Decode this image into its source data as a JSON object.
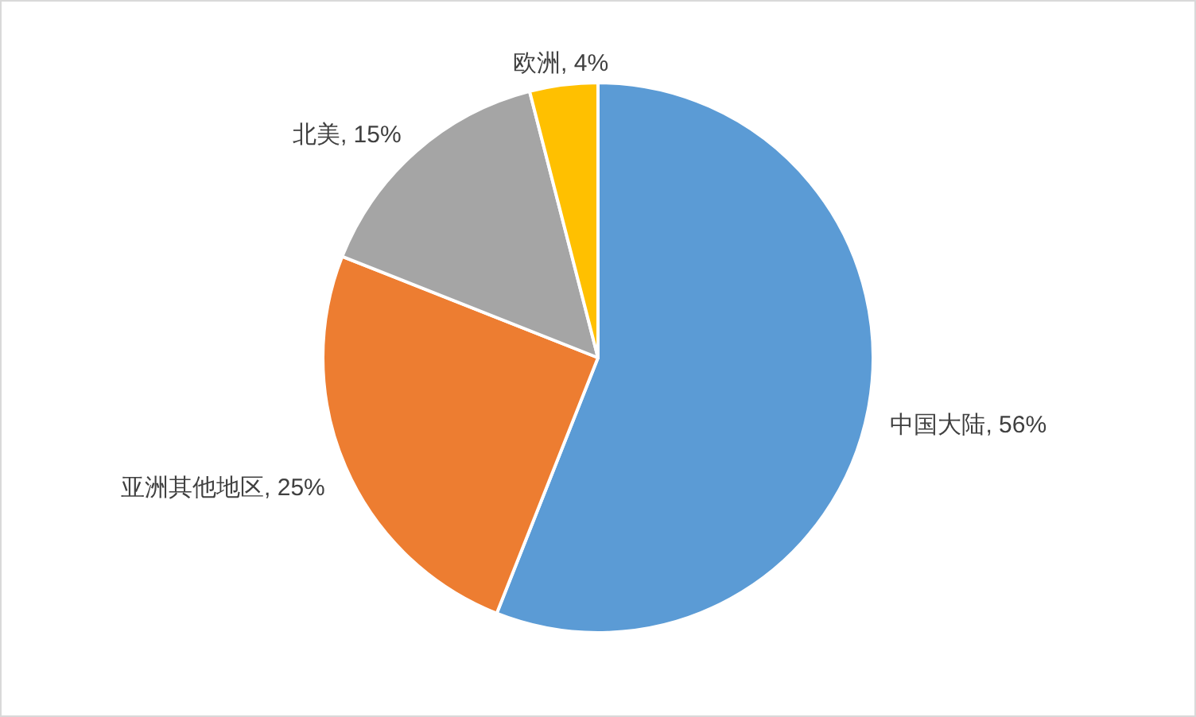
{
  "chart_data": {
    "type": "pie",
    "categories": [
      "中国大陆",
      "亚洲其他地区",
      "北美",
      "欧洲"
    ],
    "values": [
      56,
      25,
      15,
      4
    ],
    "value_labels": [
      "56%",
      "25%",
      "15%",
      "4%"
    ],
    "colors": [
      "#5b9bd5",
      "#ed7d31",
      "#a5a5a5",
      "#ffc000"
    ]
  }
}
